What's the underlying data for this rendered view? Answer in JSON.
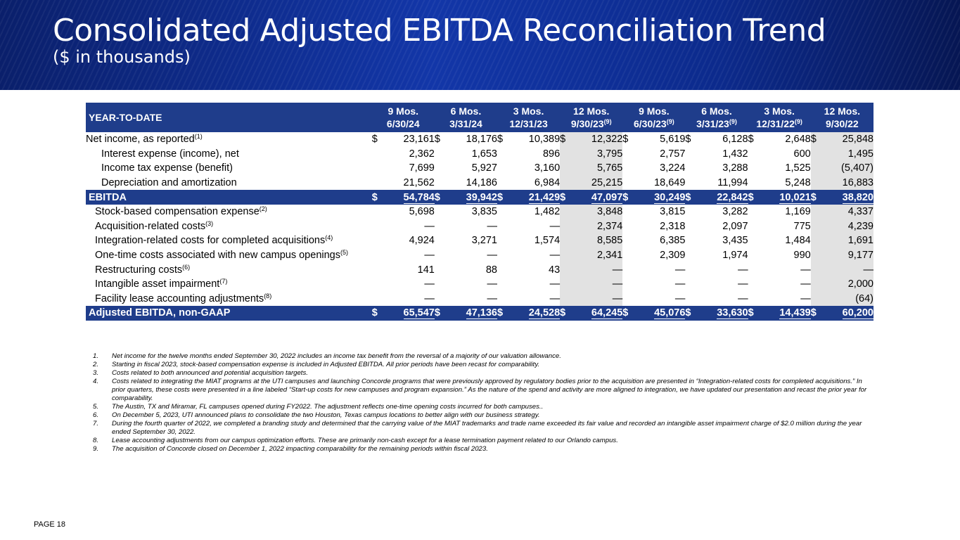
{
  "header": {
    "title": "Consolidated Adjusted EBITDA Reconciliation Trend",
    "subtitle": "($ in thousands)"
  },
  "table": {
    "corner_label": "YEAR-TO-DATE",
    "columns": [
      {
        "line1": "9 Mos.",
        "line2": "6/30/24",
        "sup": "",
        "shaded": false
      },
      {
        "line1": "6 Mos.",
        "line2": "3/31/24",
        "sup": "",
        "shaded": false
      },
      {
        "line1": "3 Mos.",
        "line2": "12/31/23",
        "sup": "",
        "shaded": false
      },
      {
        "line1": "12 Mos.",
        "line2": "9/30/23",
        "sup": "(9)",
        "shaded": true
      },
      {
        "line1": "9 Mos.",
        "line2": "6/30/23",
        "sup": "(9)",
        "shaded": false
      },
      {
        "line1": "6 Mos.",
        "line2": "3/31/23",
        "sup": "(9)",
        "shaded": false
      },
      {
        "line1": "3 Mos.",
        "line2": "12/31/22",
        "sup": "(9)",
        "shaded": false
      },
      {
        "line1": "12 Mos.",
        "line2": "9/30/22",
        "sup": "",
        "shaded": true
      }
    ],
    "currency_symbol": "$",
    "rows": [
      {
        "label": "Net income, as reported",
        "sup": "(1)",
        "indent": 0,
        "type": "normal",
        "dollar": true,
        "values": [
          "23,161",
          "18,176",
          "10,389",
          "12,322",
          "5,619",
          "6,128",
          "2,648",
          "25,848"
        ]
      },
      {
        "label": "Interest expense (income), net",
        "sup": "",
        "indent": 1,
        "type": "normal",
        "dollar": false,
        "values": [
          "2,362",
          "1,653",
          "896",
          "3,795",
          "2,757",
          "1,432",
          "600",
          "1,495"
        ]
      },
      {
        "label": "Income tax expense (benefit)",
        "sup": "",
        "indent": 1,
        "type": "normal",
        "dollar": false,
        "values": [
          "7,699",
          "5,927",
          "3,160",
          "5,765",
          "3,224",
          "3,288",
          "1,525",
          "(5,407)"
        ]
      },
      {
        "label": "Depreciation and amortization",
        "sup": "",
        "indent": 1,
        "type": "normal",
        "dollar": false,
        "values": [
          "21,562",
          "14,186",
          "6,984",
          "25,215",
          "18,649",
          "11,994",
          "5,248",
          "16,883"
        ]
      },
      {
        "label": "EBITDA",
        "sup": "",
        "indent": 0,
        "type": "total",
        "dollar": true,
        "values": [
          "54,784",
          "39,942",
          "21,429",
          "47,097",
          "30,249",
          "22,842",
          "10,021",
          "38,820"
        ]
      },
      {
        "label": "Stock-based compensation expense",
        "sup": "(2)",
        "indent": 2,
        "type": "normal",
        "dollar": false,
        "values": [
          "5,698",
          "3,835",
          "1,482",
          "3,848",
          "3,815",
          "3,282",
          "1,169",
          "4,337"
        ]
      },
      {
        "label": "Acquisition-related costs",
        "sup": "(3)",
        "indent": 2,
        "type": "normal",
        "dollar": false,
        "values": [
          "—",
          "—",
          "—",
          "2,374",
          "2,318",
          "2,097",
          "775",
          "4,239"
        ]
      },
      {
        "label": "Integration-related costs for completed acquisitions",
        "sup": "(4)",
        "indent": 2,
        "type": "normal",
        "dollar": false,
        "values": [
          "4,924",
          "3,271",
          "1,574",
          "8,585",
          "6,385",
          "3,435",
          "1,484",
          "1,691"
        ]
      },
      {
        "label": "One-time costs associated with new campus openings",
        "sup": "(5)",
        "indent": 2,
        "type": "normal",
        "dollar": false,
        "values": [
          "—",
          "—",
          "—",
          "2,341",
          "2,309",
          "1,974",
          "990",
          "9,177"
        ]
      },
      {
        "label": "Restructuring costs",
        "sup": "(6)",
        "indent": 2,
        "type": "normal",
        "dollar": false,
        "values": [
          "141",
          "88",
          "43",
          "—",
          "—",
          "—",
          "—",
          "—"
        ]
      },
      {
        "label": "Intangible asset impairment",
        "sup": "(7)",
        "indent": 2,
        "type": "normal",
        "dollar": false,
        "values": [
          "—",
          "—",
          "—",
          "—",
          "—",
          "—",
          "—",
          "2,000"
        ]
      },
      {
        "label": "Facility lease accounting adjustments",
        "sup": "(8)",
        "indent": 2,
        "type": "normal",
        "dollar": false,
        "values": [
          "—",
          "—",
          "—",
          "—",
          "—",
          "—",
          "—",
          "(64)"
        ]
      },
      {
        "label": "Adjusted EBITDA, non-GAAP",
        "sup": "",
        "indent": 0,
        "type": "total",
        "dollar": true,
        "values": [
          "65,547",
          "47,136",
          "24,528",
          "64,245",
          "45,076",
          "33,630",
          "14,439",
          "60,200"
        ]
      }
    ]
  },
  "footnotes": [
    {
      "num": "1.",
      "text": "Net income for the twelve months ended September 30, 2022 includes an income tax benefit from the reversal of a majority of our valuation allowance."
    },
    {
      "num": "2.",
      "text": "Starting in fiscal 2023, stock-based compensation expense is included in Adjusted EBITDA. All prior periods have been recast for comparability."
    },
    {
      "num": "3.",
      "text": "Costs related to both announced and potential acquisition targets."
    },
    {
      "num": "4.",
      "text": "Costs related to integrating the MIAT programs at the UTI campuses and launching Concorde programs that were previously approved by regulatory bodies prior to the acquisition are presented in “Integration-related costs for completed acquisitions.” In prior quarters, these costs were presented in a line labeled “Start-up costs for new campuses and program expansion.” As the nature of the spend and activity are more aligned to integration, we have updated our presentation and recast the prior year for comparability."
    },
    {
      "num": "5.",
      "text": "The Austin, TX and Miramar, FL campuses opened during FY2022. The adjustment reflects one-time opening costs incurred for both campuses.."
    },
    {
      "num": "6.",
      "text": "On December 5, 2023, UTI announced plans to consolidate the two Houston, Texas campus locations to better align with our business strategy."
    },
    {
      "num": "7.",
      "text": "During the fourth quarter of 2022, we completed a branding study and determined that the carrying value of the MIAT trademarks and trade name exceeded its fair value and recorded an intangible asset impairment charge of $2.0 million during the year ended September 30, 2022."
    },
    {
      "num": "8.",
      "text": "Lease accounting adjustments from our campus optimization efforts. These are primarily non-cash except for a lease termination payment related to our Orlando campus."
    },
    {
      "num": "9.",
      "text": "The acquisition of Concorde closed on December 1, 2022 impacting comparability for the remaining periods within fiscal 2023."
    }
  ],
  "footer": {
    "page_label": "PAGE 18"
  }
}
